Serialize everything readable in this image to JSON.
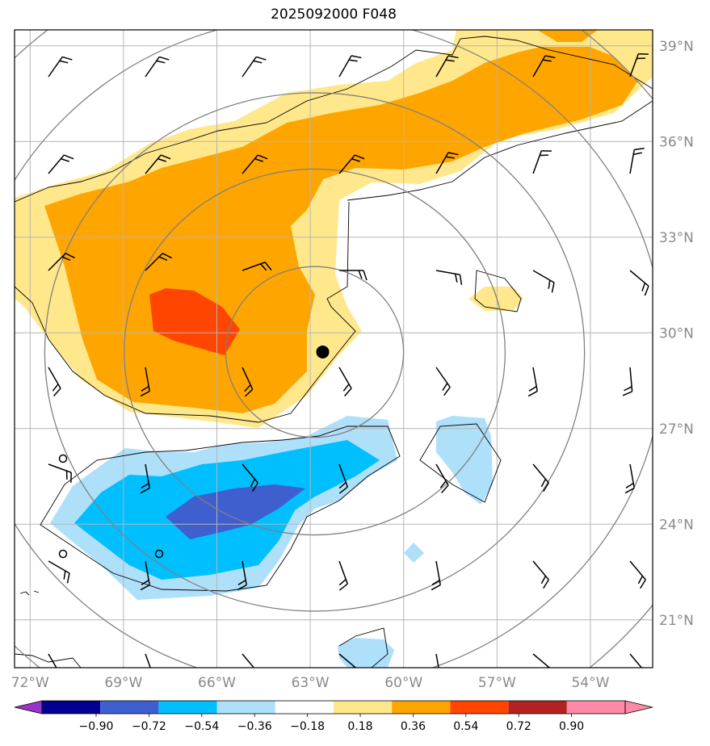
{
  "title": "2025092000 F048",
  "chart_data": {
    "type": "map-contour",
    "title": "2025092000 F048",
    "lon_range": [
      -72.5,
      -52.0
    ],
    "lat_range": [
      19.5,
      39.5
    ],
    "lon_ticks": [
      -72,
      -69,
      -66,
      -63,
      -60,
      -57,
      -54
    ],
    "lon_tick_labels": [
      "72°W",
      "69°W",
      "66°W",
      "63°W",
      "60°W",
      "57°W",
      "54°W"
    ],
    "lat_ticks": [
      21,
      24,
      27,
      30,
      33,
      36,
      39
    ],
    "lat_tick_labels": [
      "21°N",
      "24°N",
      "27°N",
      "30°N",
      "33°N",
      "36°N",
      "39°N"
    ],
    "grid": true,
    "colorbar": {
      "levels": [
        -0.9,
        -0.72,
        -0.54,
        -0.36,
        -0.18,
        0.18,
        0.36,
        0.54,
        0.72,
        0.9
      ],
      "labels": [
        "−0.90",
        "−0.72",
        "−0.54",
        "−0.36",
        "−0.18",
        "0.18",
        "0.36",
        "0.54",
        "0.72",
        "0.90"
      ],
      "colors": [
        "#9933cc",
        "#000090",
        "#3f5fcf",
        "#00bfff",
        "#aee0fa",
        "#ffffff",
        "#ffe88c",
        "#ffa500",
        "#ff4500",
        "#b22222",
        "#ff8aa8"
      ],
      "extend": "both"
    },
    "storm_center": {
      "lon": -62.6,
      "lat": 29.4
    },
    "range_ring_center": {
      "lon": -62.6,
      "lat": 29.4
    },
    "range_ring_radii_deg": [
      2.8,
      6.0,
      8.5,
      11.0,
      13.5
    ]
  }
}
